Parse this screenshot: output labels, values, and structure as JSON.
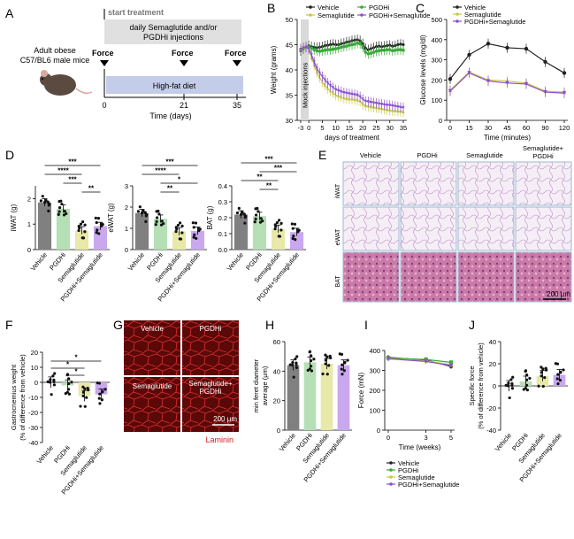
{
  "panels": {
    "A": {
      "letter": "A",
      "start_treatment": "start treatment",
      "injections_line1": "daily Semaglutide and/or",
      "injections_line2": "PGDHi injections",
      "mice_line1": "Adult obese",
      "mice_line2": "C57/BL6 male mice",
      "force_label": "Force",
      "diet_label": "High-fat diet",
      "ticks": [
        "0",
        "21",
        "35"
      ],
      "xlabel": "Time (days)"
    },
    "E": {
      "letter": "E",
      "columns": [
        "Vehicle",
        "PGDHi",
        "Semaglutide",
        "Semaglutide+",
        "PGDHi"
      ],
      "rows": [
        "iWAT",
        "eWAT",
        "BAT"
      ],
      "scalebar": "200 μm"
    },
    "G": {
      "letter": "G",
      "labels": [
        "Vehicle",
        "PGDHi",
        "Semaglutide",
        "Semaglutide+",
        "PGDHi"
      ],
      "scalebar": "200 μm",
      "stain": "Laminin"
    }
  },
  "colors": {
    "vehicle": "#808080",
    "pgdhi": "#b5dfb5",
    "semaglutide": "#e8e8a8",
    "combo": "#c9a8ee",
    "vehicle_line": "#222222",
    "pgdhi_line": "#3aa83a",
    "sema_line": "#c8c844",
    "combo_line": "#8a4fd0",
    "muscle": "#7a1010",
    "laminin": "#d02020"
  },
  "chart_data": [
    {
      "panel": "B",
      "type": "line",
      "ylabel": "Weight (grams)",
      "xlabel": "days of treatment",
      "xticks": [
        "-3",
        "0",
        "5",
        "10",
        "15",
        "20",
        "25",
        "30",
        "35"
      ],
      "yticks": [
        "30",
        "35",
        "40",
        "45",
        "50"
      ],
      "ylim": [
        30,
        50
      ],
      "xlim": [
        -3,
        35
      ],
      "shade_label": "Mock injections",
      "legend": [
        "Vehicle",
        "PGDHi",
        "Semaglutide",
        "PGDHi+Semaglutide"
      ],
      "x": [
        -3,
        -2,
        -1,
        0,
        1,
        2,
        3,
        4,
        5,
        6,
        7,
        8,
        9,
        10,
        11,
        12,
        13,
        14,
        15,
        16,
        17,
        18,
        19,
        20,
        21,
        22,
        23,
        24,
        25,
        26,
        27,
        28,
        29,
        30,
        31,
        32,
        33,
        34,
        35
      ],
      "series": [
        {
          "name": "Vehicle",
          "values": [
            43.8,
            44.2,
            44.5,
            44.8,
            44.6,
            44.5,
            44.4,
            44.5,
            44.6,
            44.8,
            44.9,
            45.0,
            45.1,
            45.0,
            45.0,
            45.2,
            45.3,
            45.5,
            45.6,
            45.8,
            45.9,
            46.0,
            45.8,
            45.2,
            44.3,
            44.0,
            44.2,
            44.4,
            44.6,
            44.7,
            44.6,
            44.7,
            44.8,
            44.9,
            44.7,
            44.8,
            45.0,
            45.1,
            45.0
          ]
        },
        {
          "name": "PGDHi",
          "values": [
            44.0,
            44.3,
            44.5,
            44.6,
            44.3,
            44.0,
            43.8,
            43.7,
            43.8,
            43.9,
            44.0,
            44.0,
            44.1,
            44.2,
            44.3,
            44.5,
            44.6,
            44.7,
            44.9,
            45.0,
            45.1,
            45.3,
            45.2,
            44.5,
            43.5,
            43.2,
            43.3,
            43.5,
            43.7,
            43.8,
            43.9,
            43.9,
            44.0,
            44.0,
            43.8,
            43.9,
            44.0,
            44.0,
            43.9
          ]
        },
        {
          "name": "Semaglutide",
          "values": [
            44.2,
            44.5,
            44.6,
            44.0,
            42.5,
            41.0,
            39.5,
            38.5,
            37.6,
            36.9,
            36.3,
            35.8,
            35.4,
            35.0,
            34.8,
            34.6,
            34.4,
            34.3,
            34.2,
            34.2,
            34.1,
            34.0,
            33.8,
            33.2,
            32.9,
            32.8,
            32.7,
            32.6,
            32.5,
            32.4,
            32.3,
            32.2,
            32.1,
            32.0,
            31.9,
            31.9,
            31.8,
            31.8,
            31.7
          ]
        },
        {
          "name": "PGDHi+Semaglutide",
          "values": [
            44.1,
            44.4,
            44.5,
            44.2,
            43.0,
            41.6,
            40.3,
            39.4,
            38.7,
            38.0,
            37.4,
            36.9,
            36.5,
            36.1,
            35.9,
            35.7,
            35.5,
            35.4,
            35.3,
            35.2,
            35.1,
            35.0,
            34.7,
            34.2,
            33.8,
            33.7,
            33.6,
            33.5,
            33.4,
            33.3,
            33.2,
            33.1,
            33.0,
            33.0,
            32.9,
            32.8,
            32.7,
            32.6,
            32.5
          ]
        }
      ]
    },
    {
      "panel": "C",
      "type": "line",
      "ylabel": "Glucose levels (mg/dl)",
      "xlabel": "Time (minutes)",
      "ylim": [
        0,
        500
      ],
      "yticks": [
        "0",
        "100",
        "200",
        "300",
        "400",
        "500"
      ],
      "x": [
        0,
        15,
        30,
        45,
        60,
        90,
        120
      ],
      "xticks": [
        "0",
        "15",
        "30",
        "45",
        "60",
        "90",
        "120"
      ],
      "legend": [
        "Vehicle",
        "Semaglutide",
        "PGDHi+Semaglutide"
      ],
      "series": [
        {
          "name": "Vehicle",
          "values": [
            205,
            325,
            380,
            360,
            355,
            290,
            235
          ]
        },
        {
          "name": "Semaglutide",
          "values": [
            150,
            240,
            200,
            195,
            185,
            145,
            140
          ]
        },
        {
          "name": "PGDHi+Semaglutide",
          "values": [
            145,
            235,
            195,
            185,
            180,
            140,
            135
          ]
        }
      ]
    },
    {
      "panel": "D1",
      "type": "bar",
      "ylabel": "iWAT (g)",
      "ylim": [
        0,
        2.5
      ],
      "yticks": [
        "0",
        "1",
        "2"
      ],
      "categories": [
        "Vehicle",
        "PGDHi",
        "Semaglutide",
        "PGDHi+Semaglutide"
      ],
      "values": [
        1.85,
        1.6,
        0.75,
        0.92
      ],
      "sig": [
        "***",
        "****",
        "***",
        "**"
      ]
    },
    {
      "panel": "D2",
      "type": "bar",
      "ylabel": "eWAT (g)",
      "ylim": [
        0,
        3
      ],
      "yticks": [
        "0",
        "1",
        "2",
        "3"
      ],
      "categories": [
        "Vehicle",
        "PGDHi",
        "Semaglutide",
        "PGDHi+Semaglutide"
      ],
      "values": [
        1.72,
        1.45,
        0.85,
        0.88
      ],
      "sig": [
        "***",
        "****",
        "**",
        "*"
      ]
    },
    {
      "panel": "D3",
      "type": "bar",
      "ylabel": "BAT (g)",
      "ylim": [
        0,
        0.4
      ],
      "yticks": [
        "0.0",
        "0.1",
        "0.2",
        "0.3",
        "0.4"
      ],
      "categories": [
        "Vehicle",
        "PGDHi",
        "Semaglutide",
        "PGDHi+Semaglutide"
      ],
      "values": [
        0.22,
        0.21,
        0.13,
        0.11
      ],
      "sig": [
        "***",
        "**",
        "**",
        "***"
      ]
    },
    {
      "panel": "F",
      "type": "bar",
      "ylabel_line1": "Gastrocnemius weight",
      "ylabel_line2": "(% of difference from vehicle)",
      "ylim": [
        -40,
        20
      ],
      "yticks": [
        "-40",
        "-30",
        "-20",
        "-10",
        "0",
        "10",
        "20"
      ],
      "categories": [
        "Vehicle",
        "PGDHi",
        "Semaglutide",
        "PGDHi+Semaglutide"
      ],
      "values": [
        0,
        -2,
        -9,
        -8
      ],
      "sig": [
        "*",
        "*",
        "*"
      ]
    },
    {
      "panel": "H",
      "type": "bar",
      "ylabel_line1": "min feret diameter",
      "ylabel_line2": "average (μm)",
      "ylim": [
        0,
        60
      ],
      "yticks": [
        "0",
        "20",
        "40",
        "60"
      ],
      "categories": [
        "Vehicle",
        "PGDHi",
        "Semaglutide",
        "PGDHi+Semaglutide"
      ],
      "values": [
        44,
        46,
        45,
        44
      ]
    },
    {
      "panel": "I",
      "type": "line",
      "ylabel": "Force (mN)",
      "xlabel": "Time (weeks)",
      "ylim": [
        0,
        400
      ],
      "yticks": [
        "0",
        "100",
        "200",
        "300",
        "400"
      ],
      "x": [
        0,
        3,
        5
      ],
      "xticks": [
        "0",
        "3",
        "5"
      ],
      "legend": [
        "Vehicle",
        "PGDHi",
        "Semaglutide",
        "PGDHi+Semaglutide"
      ],
      "series": [
        {
          "name": "Vehicle",
          "values": [
            365,
            352,
            320
          ]
        },
        {
          "name": "PGDHi",
          "values": [
            362,
            355,
            340
          ]
        },
        {
          "name": "Semaglutide",
          "values": [
            360,
            348,
            328
          ]
        },
        {
          "name": "PGDHi+Semaglutide",
          "values": [
            358,
            345,
            325
          ]
        }
      ]
    },
    {
      "panel": "J",
      "type": "bar",
      "ylabel_line1": "Specific force",
      "ylabel_line2": "(% of difference from vehicle)",
      "ylim": [
        -40,
        40
      ],
      "yticks": [
        "-40",
        "-20",
        "0",
        "20",
        "40"
      ],
      "categories": [
        "Vehicle",
        "PGDHi",
        "Semaglutide",
        "PGDHi+Semaglutide"
      ],
      "values": [
        0,
        4,
        9,
        10
      ]
    }
  ]
}
